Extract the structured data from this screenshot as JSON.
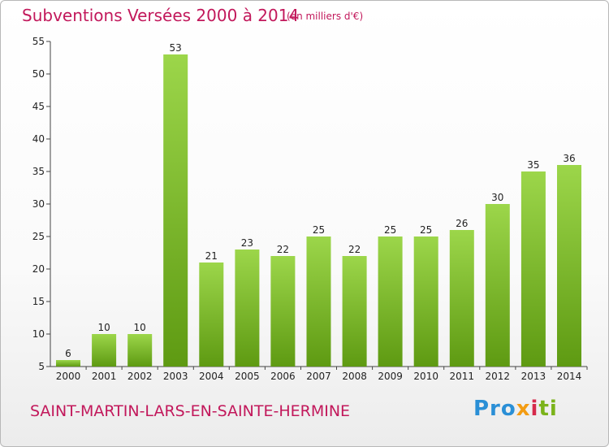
{
  "header": {
    "title": "Subventions Versées 2000 à 2014",
    "subtitle": "(en milliers d'€)"
  },
  "footer": {
    "commune": "SAINT-MARTIN-LARS-EN-SAINTE-HERMINE",
    "logo": [
      "Pro",
      "x",
      "i",
      "ti"
    ]
  },
  "colors": {
    "title": "#c2185b",
    "bar_top": "#9cd64a",
    "bar_bottom": "#5e9a12"
  },
  "chart_data": {
    "type": "bar",
    "title": "Subventions Versées 2000 à 2014",
    "subtitle": "(en milliers d'€)",
    "xlabel": "",
    "ylabel": "",
    "categories": [
      "2000",
      "2001",
      "2002",
      "2003",
      "2004",
      "2005",
      "2006",
      "2007",
      "2008",
      "2009",
      "2010",
      "2011",
      "2012",
      "2013",
      "2014"
    ],
    "values": [
      6,
      10,
      10,
      53,
      21,
      23,
      22,
      25,
      22,
      25,
      25,
      26,
      30,
      35,
      36
    ],
    "ylim": [
      5,
      55
    ],
    "yticks": [
      5,
      10,
      15,
      20,
      25,
      30,
      35,
      40,
      45,
      50,
      55
    ],
    "grid": false,
    "data_labels": true
  }
}
